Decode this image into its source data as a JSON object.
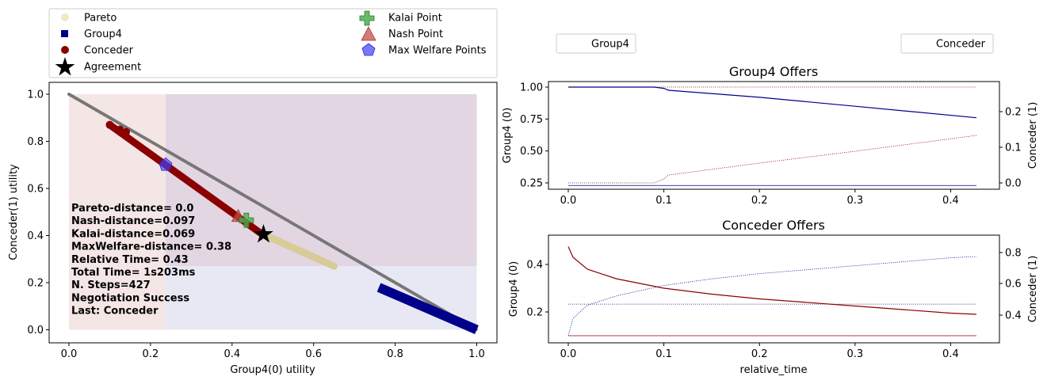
{
  "chart_data": [
    {
      "type": "scatter",
      "xlabel": "Group4(0) utility",
      "ylabel": "Conceder(1) utility",
      "xlim": [
        0,
        1
      ],
      "ylim": [
        0,
        1
      ],
      "x_ticks": [
        "0.0",
        "0.2",
        "0.4",
        "0.6",
        "0.8",
        "1.0"
      ],
      "y_ticks": [
        "0.0",
        "0.2",
        "0.4",
        "0.6",
        "0.8",
        "1.0"
      ],
      "legend": {
        "placement": "above-left",
        "entries": [
          "Pareto",
          "Group4",
          "Conceder",
          "Agreement",
          "Kalai Point",
          "Nash Point",
          "Max Welfare Points"
        ]
      },
      "pareto_front": {
        "x": [
          0.0,
          1.0
        ],
        "y": [
          1.0,
          0.0
        ]
      },
      "pareto_highlight": {
        "x": [
          0.47,
          0.65
        ],
        "y": [
          0.41,
          0.27
        ]
      },
      "group4_offers": {
        "x": [
          0.76,
          1.0
        ],
        "y": [
          0.18,
          0.0
        ]
      },
      "conceder_offers": {
        "x": [
          0.1,
          0.47
        ],
        "y": [
          0.87,
          0.41
        ]
      },
      "conceder_scatter": [
        [
          0.1,
          0.87
        ],
        [
          0.125,
          0.85
        ],
        [
          0.14,
          0.84
        ]
      ],
      "agreement": {
        "x": 0.477,
        "y": 0.405
      },
      "kalai_point": {
        "x": 0.435,
        "y": 0.465
      },
      "nash_point": {
        "x": 0.415,
        "y": 0.48
      },
      "max_welfare_point": {
        "x": 0.237,
        "y": 0.7
      },
      "regions": [
        {
          "name": "conceder-acceptable",
          "x": [
            0.0,
            1.0
          ],
          "y": [
            0.0,
            1.0
          ],
          "color": "#f2dede"
        },
        {
          "name": "group4-acceptable",
          "x": [
            0.237,
            1.0
          ],
          "y": [
            0.0,
            1.0
          ],
          "color": "#dddff0"
        }
      ],
      "stats": [
        "Pareto-distance=  0.0",
        "Nash-distance=0.097",
        "Kalai-distance=0.069",
        "MaxWelfare-distance= 0.38",
        "Relative Time= 0.43",
        "Total Time= 1s203ms",
        "N. Steps=427",
        "Negotiation Success",
        "Last: Conceder"
      ]
    },
    {
      "type": "line",
      "title": "Group4 Offers",
      "xlabel": "",
      "ylabel": "Group4 (0)",
      "y2label": "Conceder (1)",
      "xlim": [
        0,
        0.43
      ],
      "ylim": [
        0.25,
        1.0
      ],
      "y2lim": [
        0.0,
        0.27
      ],
      "x_ticks": [
        "0.0",
        "0.1",
        "0.2",
        "0.3",
        "0.4"
      ],
      "y_ticks": [
        "0.25",
        "0.50",
        "0.75",
        "1.00"
      ],
      "y2_ticks": [
        "0.0",
        "0.1",
        "0.2"
      ],
      "legend": [
        "Group4",
        "Conceder"
      ],
      "series": [
        {
          "name": "Group4",
          "axis": "left",
          "color": "#00008b",
          "style": "solid",
          "x": [
            0,
            0.09,
            0.1,
            0.105,
            0.2,
            0.3,
            0.427
          ],
          "y": [
            1.0,
            1.0,
            0.99,
            0.975,
            0.92,
            0.85,
            0.76
          ]
        },
        {
          "name": "Conceder",
          "axis": "right",
          "color": "#8b0000",
          "style": "dotted",
          "x": [
            0,
            0.09,
            0.1,
            0.105,
            0.2,
            0.3,
            0.427
          ],
          "y": [
            0.0,
            0.0,
            0.015,
            0.03,
            0.075,
            0.12,
            0.18
          ]
        }
      ],
      "reference_lines": [
        {
          "axis": "left",
          "y": 1.0,
          "color": "#8b0000",
          "style": "dotted"
        },
        {
          "axis": "left",
          "y": 0.23,
          "color": "#00008b",
          "style": "solid"
        }
      ]
    },
    {
      "type": "line",
      "title": "Conceder Offers",
      "xlabel": "relative_time",
      "ylabel": "Group4 (0)",
      "y2label": "Conceder (1)",
      "xlim": [
        0,
        0.43
      ],
      "ylim": [
        0.09,
        0.5
      ],
      "y2lim": [
        0.25,
        0.9
      ],
      "x_ticks": [
        "0.0",
        "0.1",
        "0.2",
        "0.3",
        "0.4"
      ],
      "y_ticks": [
        "0.2",
        "0.4"
      ],
      "y2_ticks": [
        "0.4",
        "0.6",
        "0.8"
      ],
      "series": [
        {
          "name": "Conceder",
          "axis": "left",
          "color": "#8b0000",
          "style": "solid",
          "x": [
            0,
            0.005,
            0.02,
            0.05,
            0.1,
            0.15,
            0.2,
            0.3,
            0.35,
            0.4,
            0.427
          ],
          "y": [
            0.475,
            0.43,
            0.38,
            0.34,
            0.3,
            0.275,
            0.255,
            0.225,
            0.21,
            0.195,
            0.19
          ]
        },
        {
          "name": "Group4",
          "axis": "right",
          "color": "#00008b",
          "style": "dotted",
          "x": [
            0,
            0.005,
            0.02,
            0.05,
            0.1,
            0.15,
            0.2,
            0.3,
            0.35,
            0.4,
            0.427
          ],
          "y": [
            0.27,
            0.4,
            0.5,
            0.57,
            0.65,
            0.7,
            0.74,
            0.8,
            0.83,
            0.86,
            0.87
          ]
        }
      ],
      "reference_lines": [
        {
          "axis": "left",
          "y": 0.233,
          "color": "#00008b",
          "style": "dotted"
        },
        {
          "axis": "left",
          "y": 0.1,
          "color": "#8b0000",
          "style": "solid"
        }
      ]
    }
  ]
}
